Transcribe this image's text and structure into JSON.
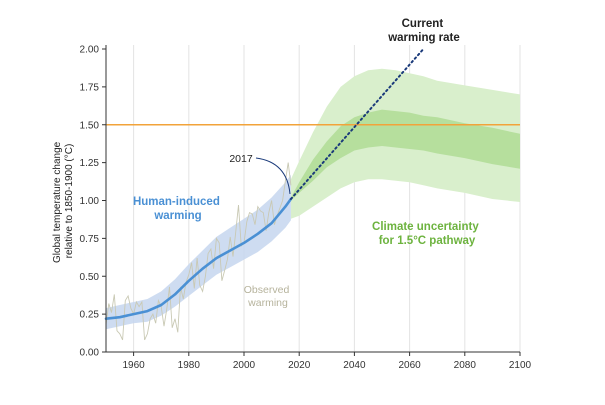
{
  "chart_data": {
    "type": "line",
    "ylabel_lines": [
      "Global temperature change",
      "relative to 1850-1900 (°C)"
    ],
    "xlim": [
      1950,
      2100
    ],
    "ylim": [
      0,
      2.0
    ],
    "xticks": [
      "1960",
      "1980",
      "2000",
      "2020",
      "2040",
      "2060",
      "2080",
      "2100"
    ],
    "yticks": [
      "0.00",
      "0.25",
      "0.50",
      "0.75",
      "1.00",
      "1.25",
      "1.50",
      "1.75",
      "2.00"
    ],
    "grid": "vertical",
    "reference_line": {
      "y": 1.5,
      "color": "#f2a33a"
    },
    "series": [
      {
        "name": "Observed warming",
        "color": "#c9c9b4",
        "x": [
          1950,
          1951,
          1952,
          1953,
          1954,
          1955,
          1956,
          1957,
          1958,
          1959,
          1960,
          1961,
          1962,
          1963,
          1964,
          1965,
          1966,
          1967,
          1968,
          1969,
          1970,
          1971,
          1972,
          1973,
          1974,
          1975,
          1976,
          1977,
          1978,
          1979,
          1980,
          1981,
          1982,
          1983,
          1984,
          1985,
          1986,
          1987,
          1988,
          1989,
          1990,
          1991,
          1992,
          1993,
          1994,
          1995,
          1996,
          1997,
          1998,
          1999,
          2000,
          2001,
          2002,
          2003,
          2004,
          2005,
          2006,
          2007,
          2008,
          2009,
          2010,
          2011,
          2012,
          2013,
          2014,
          2015,
          2016,
          2017
        ],
        "values": [
          0.18,
          0.32,
          0.26,
          0.38,
          0.14,
          0.12,
          0.08,
          0.34,
          0.37,
          0.29,
          0.25,
          0.33,
          0.3,
          0.33,
          0.08,
          0.12,
          0.22,
          0.25,
          0.19,
          0.34,
          0.3,
          0.17,
          0.28,
          0.43,
          0.16,
          0.22,
          0.13,
          0.43,
          0.35,
          0.46,
          0.51,
          0.59,
          0.42,
          0.62,
          0.44,
          0.4,
          0.5,
          0.65,
          0.68,
          0.55,
          0.75,
          0.72,
          0.47,
          0.54,
          0.61,
          0.76,
          0.63,
          0.79,
          0.97,
          0.7,
          0.72,
          0.86,
          0.92,
          0.91,
          0.84,
          0.96,
          0.93,
          0.92,
          0.8,
          0.92,
          1.0,
          0.84,
          0.9,
          0.95,
          1.0,
          1.13,
          1.25,
          1.1
        ]
      },
      {
        "name": "Human-induced warming",
        "color": "#4a90d4",
        "x": [
          1950,
          1955,
          1960,
          1965,
          1970,
          1975,
          1980,
          1985,
          1990,
          1995,
          2000,
          2005,
          2010,
          2015,
          2017
        ],
        "values": [
          0.22,
          0.23,
          0.25,
          0.27,
          0.31,
          0.38,
          0.47,
          0.55,
          0.62,
          0.67,
          0.72,
          0.78,
          0.85,
          0.96,
          1.01
        ],
        "lower": [
          0.15,
          0.17,
          0.19,
          0.2,
          0.24,
          0.3,
          0.37,
          0.44,
          0.51,
          0.56,
          0.61,
          0.66,
          0.73,
          0.82,
          0.87
        ],
        "upper": [
          0.29,
          0.31,
          0.33,
          0.35,
          0.4,
          0.48,
          0.58,
          0.67,
          0.76,
          0.82,
          0.88,
          0.94,
          1.02,
          1.12,
          1.17
        ]
      },
      {
        "name": "Current warming rate",
        "color": "#1a3a7a",
        "style": "dotted",
        "x": [
          2017,
          2065
        ],
        "values": [
          1.01,
          2.0
        ]
      },
      {
        "name": "Climate uncertainty for 1.5°C pathway",
        "color": "#7fbf55",
        "x": [
          2017,
          2020,
          2025,
          2030,
          2035,
          2040,
          2045,
          2050,
          2055,
          2060,
          2065,
          2070,
          2080,
          2090,
          2100
        ],
        "outer_lower": [
          0.88,
          0.9,
          0.96,
          1.02,
          1.08,
          1.12,
          1.14,
          1.14,
          1.13,
          1.12,
          1.1,
          1.08,
          1.05,
          1.01,
          0.99
        ],
        "outer_upper": [
          1.14,
          1.26,
          1.45,
          1.62,
          1.75,
          1.82,
          1.86,
          1.87,
          1.86,
          1.84,
          1.82,
          1.79,
          1.76,
          1.73,
          1.7
        ],
        "inner_lower": [
          1.0,
          1.05,
          1.13,
          1.22,
          1.28,
          1.33,
          1.35,
          1.36,
          1.35,
          1.34,
          1.33,
          1.31,
          1.28,
          1.24,
          1.21
        ],
        "inner_upper": [
          1.02,
          1.12,
          1.27,
          1.39,
          1.49,
          1.55,
          1.58,
          1.6,
          1.59,
          1.58,
          1.56,
          1.55,
          1.51,
          1.48,
          1.44
        ]
      }
    ],
    "annotations": {
      "current_rate": [
        "Current",
        "warming rate"
      ],
      "human_induced": [
        "Human-induced",
        "warming"
      ],
      "observed": [
        "Observed",
        "warming"
      ],
      "uncertainty": [
        "Climate uncertainty",
        "for 1.5°C pathway"
      ],
      "year_marker": "2017"
    },
    "colors": {
      "human": "#4a90d4",
      "human_band": "#c5d6ef",
      "observed": "#c9c9b4",
      "observed_text": "#b6b39c",
      "uncertainty_text": "#6db33f",
      "green_outer": "#d9efcc",
      "green_inner": "#a9d98d",
      "dotted": "#1a3a7a",
      "reference": "#f2a33a",
      "axis": "#333333",
      "grid": "#e3e3e3"
    }
  }
}
